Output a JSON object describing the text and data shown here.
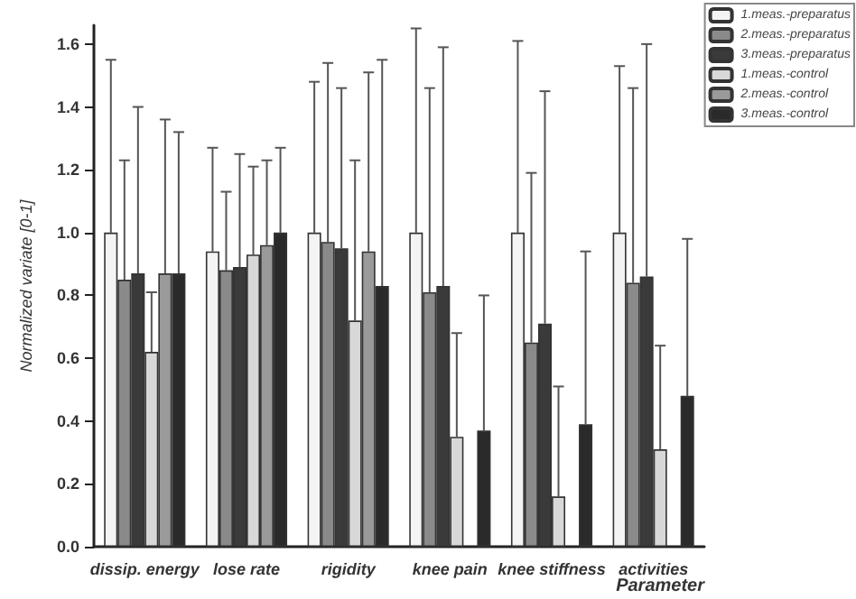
{
  "chart_data": {
    "type": "bar",
    "xlabel": "Parameter",
    "ylabel": "Normalized variate [0-1]",
    "categories": [
      "dissip. energy",
      "lose rate",
      "rigidity",
      "knee pain",
      "knee stiffness",
      "activities"
    ],
    "ylim": [
      0,
      1.66
    ],
    "yticks": [
      {
        "value": 0,
        "label": "0.0"
      },
      {
        "value": 0.2,
        "label": "0.2"
      },
      {
        "value": 0.4,
        "label": "0.4"
      },
      {
        "value": 0.6,
        "label": "0.6"
      },
      {
        "value": 0.8,
        "label": "0.8"
      },
      {
        "value": 1.0,
        "label": "1.0"
      },
      {
        "value": 1.2,
        "label": "1.2"
      },
      {
        "value": 1.4,
        "label": "1.4"
      },
      {
        "value": 1.6,
        "label": "1.6"
      }
    ],
    "grid": false,
    "legend": "top right",
    "series": [
      {
        "name": "1.meas.-preparatus",
        "color": "#f4f4f4",
        "values": [
          1.0,
          0.94,
          1.0,
          1.0,
          1.0,
          1.0
        ],
        "errors": [
          [
            1.0,
            1.55
          ],
          [
            0.94,
            1.27
          ],
          [
            1.0,
            1.48
          ],
          [
            1.0,
            1.65
          ],
          [
            1.0,
            1.61
          ],
          [
            1.0,
            1.53
          ]
        ]
      },
      {
        "name": "2.meas.-preparatus",
        "color": "#8a8a8a",
        "values": [
          0.85,
          0.88,
          0.97,
          0.81,
          0.65,
          0.84
        ],
        "errors": [
          [
            0.85,
            1.23
          ],
          [
            0.88,
            1.13
          ],
          [
            0.97,
            1.54
          ],
          [
            0.81,
            1.46
          ],
          [
            0.65,
            1.19
          ],
          [
            0.84,
            1.46
          ]
        ]
      },
      {
        "name": "3.meas.-preparatus",
        "color": "#3a3a3a",
        "values": [
          0.87,
          0.89,
          0.95,
          0.83,
          0.71,
          0.86
        ],
        "errors": [
          [
            0.87,
            1.4
          ],
          [
            0.89,
            1.25
          ],
          [
            0.95,
            1.46
          ],
          [
            0.83,
            1.59
          ],
          [
            0.71,
            1.45
          ],
          [
            0.86,
            1.6
          ]
        ]
      },
      {
        "name": "1.meas.-control",
        "color": "#d8d8d8",
        "values": [
          0.62,
          0.93,
          0.72,
          0.35,
          0.16,
          0.31
        ],
        "errors": [
          [
            0.62,
            0.81
          ],
          [
            0.93,
            1.21
          ],
          [
            0.72,
            1.23
          ],
          [
            0.35,
            0.68
          ],
          [
            0.16,
            0.51
          ],
          [
            0.31,
            0.64
          ]
        ]
      },
      {
        "name": "2.meas.-control",
        "color": "#9a9a9a",
        "values": [
          0.87,
          0.96,
          0.94,
          null,
          null,
          null
        ],
        "errors": [
          [
            0.87,
            1.36
          ],
          [
            0.96,
            1.23
          ],
          [
            0.94,
            1.51
          ],
          null,
          null,
          null
        ]
      },
      {
        "name": "3.meas.-control",
        "color": "#2a2a2a",
        "values": [
          0.87,
          1.0,
          0.83,
          0.37,
          0.39,
          0.48
        ],
        "errors": [
          [
            0.87,
            1.32
          ],
          [
            1.0,
            1.27
          ],
          [
            0.83,
            1.55
          ],
          [
            0.37,
            0.8
          ],
          [
            0.39,
            0.94
          ],
          [
            0.48,
            0.98
          ]
        ]
      }
    ]
  }
}
